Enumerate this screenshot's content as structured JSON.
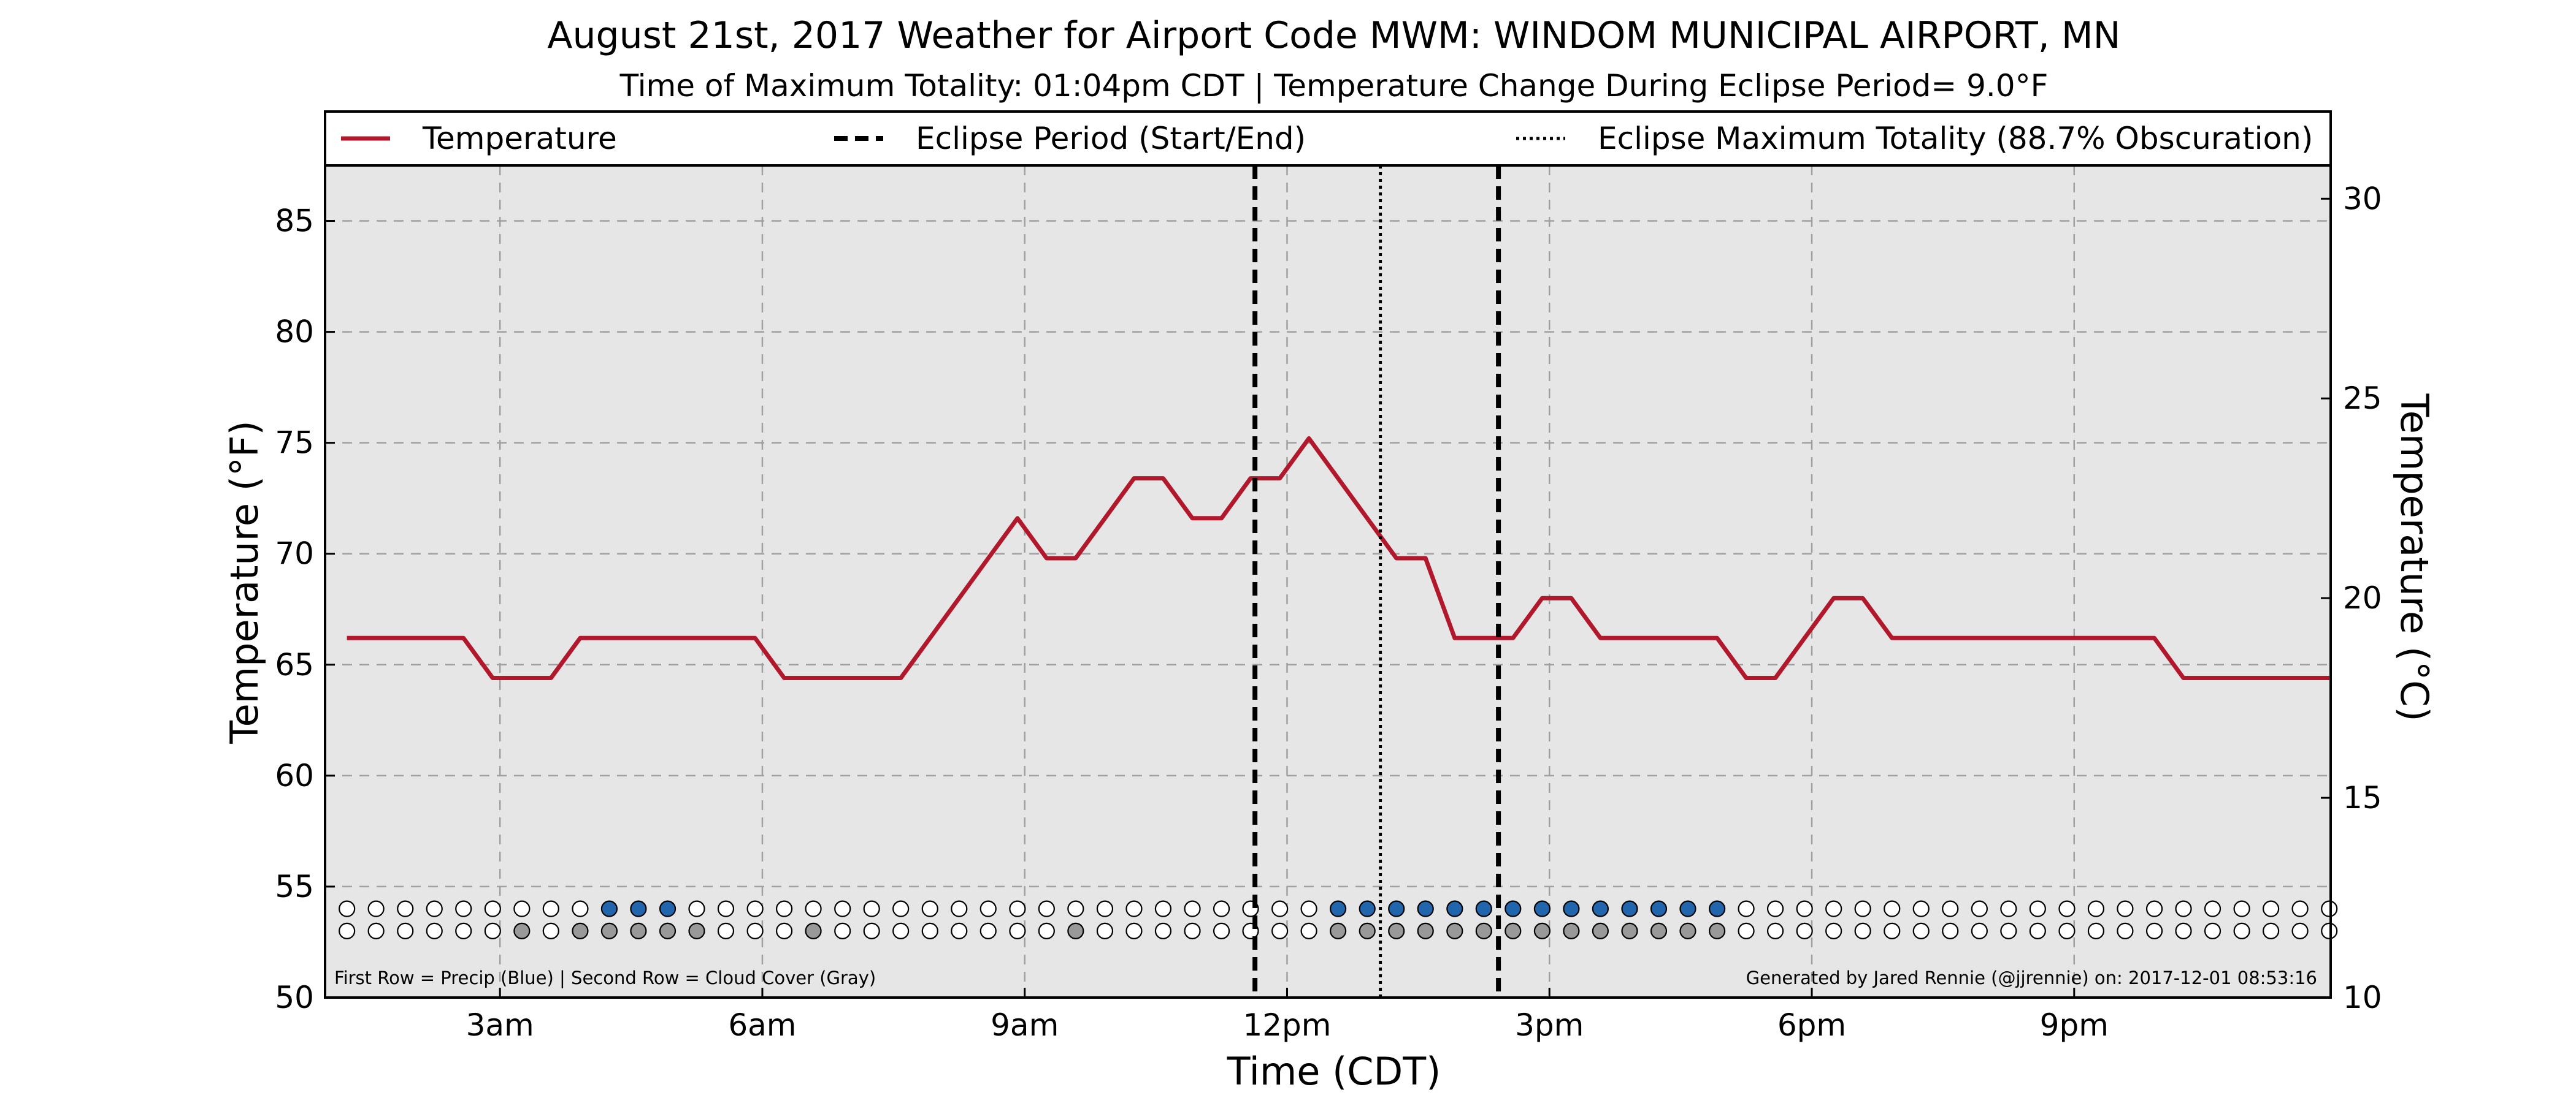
{
  "chart_data": {
    "type": "line",
    "title": "August 21st, 2017 Weather for Airport Code MWM: WINDOM MUNICIPAL AIRPORT, MN",
    "subtitle": "Time of Maximum Totality: 01:04pm CDT | Temperature Change During Eclipse Period= 9.0$^\\circ$F",
    "subtitle_display": "Time of Maximum Totality: 01:04pm CDT | Temperature Change During Eclipse Period= 9.0°F",
    "xlabel": "Time (CDT)",
    "ylabel": "Temperature ($^\\circ$F)",
    "ylabel_display": "Temperature (°F)",
    "ylabel_right": "Temperature ($^\\circ$C)",
    "ylabel_right_display": "Temperature (°C)",
    "xlim": [
      1.0,
      23.933
    ],
    "ylim": [
      50,
      87.5
    ],
    "ylim_right": [
      10,
      30.833
    ],
    "x_ticks": [
      3,
      6,
      9,
      12,
      15,
      18,
      21
    ],
    "x_tick_labels": [
      "3am",
      "6am",
      "9am",
      "12pm",
      "3pm",
      "6pm",
      "9pm"
    ],
    "y_ticks": [
      50,
      55,
      60,
      65,
      70,
      75,
      80,
      85
    ],
    "y_tick_labels": [
      "50",
      "55",
      "60",
      "65",
      "70",
      "75",
      "80",
      "85"
    ],
    "y_ticks_right": [
      10,
      15,
      20,
      25,
      30
    ],
    "y_tick_labels_right": [
      "10",
      "15",
      "20",
      "25",
      "30"
    ],
    "grid": true,
    "legend": {
      "placement": "top, above plot area",
      "entries": [
        {
          "label": "Temperature",
          "style": "solid",
          "color": "#b2182b"
        },
        {
          "label": "Eclipse Period (Start/End)",
          "style": "dashed",
          "color": "#000000"
        },
        {
          "label": "Eclipse Maximum Totality (88.7% Obscuration)",
          "style": "dotted",
          "color": "#000000"
        }
      ]
    },
    "series": [
      {
        "name": "Temperature",
        "color": "#b2182b",
        "x": [
          1.25,
          1.583,
          1.917,
          2.25,
          2.583,
          2.917,
          3.25,
          3.583,
          3.917,
          4.25,
          4.583,
          4.917,
          5.25,
          5.583,
          5.917,
          6.25,
          6.583,
          6.917,
          7.25,
          7.583,
          7.917,
          8.25,
          8.583,
          8.917,
          9.25,
          9.583,
          9.917,
          10.25,
          10.583,
          10.917,
          11.25,
          11.583,
          11.917,
          12.25,
          12.583,
          12.917,
          13.25,
          13.583,
          13.917,
          14.25,
          14.583,
          14.917,
          15.25,
          15.583,
          15.917,
          16.25,
          16.583,
          16.917,
          17.25,
          17.583,
          17.917,
          18.25,
          18.583,
          18.917,
          19.25,
          19.583,
          19.917,
          20.25,
          20.583,
          20.917,
          21.25,
          21.583,
          21.917,
          22.25,
          22.583,
          22.917,
          23.25,
          23.583,
          23.917
        ],
        "y": [
          66.2,
          66.2,
          66.2,
          66.2,
          66.2,
          64.4,
          64.4,
          64.4,
          66.2,
          66.2,
          66.2,
          66.2,
          66.2,
          66.2,
          66.2,
          64.4,
          64.4,
          64.4,
          64.4,
          64.4,
          66.2,
          68.0,
          69.8,
          71.6,
          69.8,
          69.8,
          71.6,
          73.4,
          73.4,
          71.6,
          71.6,
          73.4,
          73.4,
          75.2,
          73.4,
          71.6,
          69.8,
          69.8,
          66.2,
          66.2,
          66.2,
          68.0,
          68.0,
          66.2,
          66.2,
          66.2,
          66.2,
          66.2,
          64.4,
          64.4,
          66.2,
          68.0,
          68.0,
          66.2,
          66.2,
          66.2,
          66.2,
          66.2,
          66.2,
          66.2,
          66.2,
          66.2,
          66.2,
          64.4,
          64.4,
          64.4,
          64.4,
          64.4,
          64.4
        ]
      }
    ],
    "eclipse": {
      "start": 11.633,
      "max_totality": 13.067,
      "end": 14.417,
      "max_totality_label": "01:04pm CDT",
      "obscuration": "88.7%"
    },
    "indicator_rows": {
      "times": [
        1.25,
        1.583,
        1.917,
        2.25,
        2.583,
        2.917,
        3.25,
        3.583,
        3.917,
        4.25,
        4.583,
        4.917,
        5.25,
        5.583,
        5.917,
        6.25,
        6.583,
        6.917,
        7.25,
        7.583,
        7.917,
        8.25,
        8.583,
        8.917,
        9.25,
        9.583,
        9.917,
        10.25,
        10.583,
        10.917,
        11.25,
        11.583,
        11.917,
        12.25,
        12.583,
        12.917,
        13.25,
        13.583,
        13.917,
        14.25,
        14.583,
        14.917,
        15.25,
        15.583,
        15.917,
        16.25,
        16.583,
        16.917,
        17.25,
        17.583,
        17.917,
        18.25,
        18.583,
        18.917,
        19.25,
        19.583,
        19.917,
        20.25,
        20.583,
        20.917,
        21.25,
        21.583,
        21.917,
        22.25,
        22.583,
        22.917,
        23.25,
        23.583,
        23.917
      ],
      "precip_row_y": 54.0,
      "cloud_row_y": 53.0,
      "precip": [
        0,
        0,
        0,
        0,
        0,
        0,
        0,
        0,
        0,
        1,
        1,
        1,
        0,
        0,
        0,
        0,
        0,
        0,
        0,
        0,
        0,
        0,
        0,
        0,
        0,
        0,
        0,
        0,
        0,
        0,
        0,
        0,
        0,
        0,
        1,
        1,
        1,
        1,
        1,
        1,
        1,
        1,
        1,
        1,
        1,
        1,
        1,
        1,
        0,
        0,
        0,
        0,
        0,
        0,
        0,
        0,
        0,
        0,
        0,
        0,
        0,
        0,
        0,
        0,
        0,
        0,
        0,
        0,
        0
      ],
      "cloud_cover": [
        0,
        0,
        0,
        0,
        0,
        0,
        1,
        0,
        1,
        1,
        1,
        1,
        1,
        0,
        0,
        0,
        1,
        0,
        0,
        0,
        0,
        0,
        0,
        0,
        0,
        1,
        0,
        0,
        0,
        0,
        0,
        0,
        0,
        0,
        1,
        1,
        1,
        1,
        1,
        1,
        1,
        1,
        1,
        1,
        1,
        1,
        1,
        1,
        0,
        0,
        0,
        0,
        0,
        0,
        0,
        0,
        0,
        0,
        0,
        0,
        0,
        0,
        0,
        0,
        0,
        0,
        0,
        0,
        0
      ],
      "precip_color": "#2166ac",
      "cloud_color": "#999999",
      "empty_color": "#ffffff"
    },
    "footnote_left": "First Row = Precip (Blue) | Second Row = Cloud Cover (Gray)",
    "footnote_right": "Generated by Jared Rennie (@jjrennie) on: 2017-12-01 08:53:16",
    "colors": {
      "plot_background": "#e6e6e6",
      "temperature_line": "#b2182b",
      "grid": "#a0a0a0"
    }
  }
}
